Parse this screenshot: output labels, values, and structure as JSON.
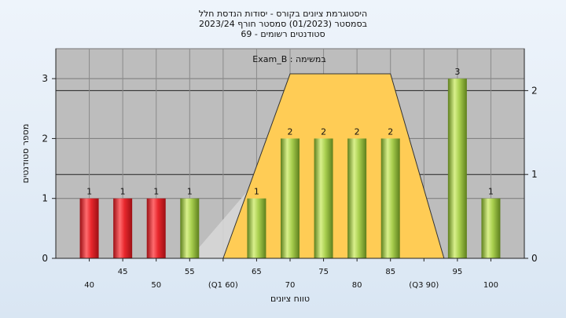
{
  "titles": {
    "line1": "היסטוגרמת ציונים בקורס - יסודות הנדסת חלל",
    "line2": "בסמסטר  (01/2023)  סמסטר חורף 2023/24",
    "line3": "סטודנטים רשומים - 69"
  },
  "colors": {
    "plot_bg": "#bdbdbd",
    "red": "#e8272c",
    "green": "#a9cf4f",
    "yellow": "#ffcc55",
    "gray": "#d6d6d6"
  },
  "chart_data": {
    "type": "bar",
    "ylabel": "מספר סטודנטים",
    "xlabel": "טווח ציונים",
    "annotation": "במשימה : Exam_B",
    "ylim": [
      0,
      3.5
    ],
    "yticks": [
      "0",
      "1",
      "2",
      "3"
    ],
    "right_yticks": [
      "0",
      "1",
      "2"
    ],
    "x_labels": [
      {
        "pos": 40,
        "label": "40",
        "row": 2
      },
      {
        "pos": 45,
        "label": "45",
        "row": 1
      },
      {
        "pos": 50,
        "label": "50",
        "row": 2
      },
      {
        "pos": 55,
        "label": "55",
        "row": 1
      },
      {
        "pos": 60,
        "label": "(Q1 60)",
        "row": 2
      },
      {
        "pos": 65,
        "label": "65",
        "row": 1
      },
      {
        "pos": 70,
        "label": "70",
        "row": 2
      },
      {
        "pos": 75,
        "label": "75",
        "row": 1
      },
      {
        "pos": 80,
        "label": "80",
        "row": 2
      },
      {
        "pos": 85,
        "label": "85",
        "row": 1
      },
      {
        "pos": 90,
        "label": "(Q3 90)",
        "row": 2
      },
      {
        "pos": 95,
        "label": "95",
        "row": 1
      },
      {
        "pos": 100,
        "label": "100",
        "row": 2
      }
    ],
    "bars": [
      {
        "x": 40,
        "value": 1,
        "color": "red"
      },
      {
        "x": 45,
        "value": 1,
        "color": "red"
      },
      {
        "x": 50,
        "value": 1,
        "color": "red"
      },
      {
        "x": 55,
        "value": 1,
        "color": "green"
      },
      {
        "x": 65,
        "value": 1,
        "color": "green"
      },
      {
        "x": 70,
        "value": 2,
        "color": "green"
      },
      {
        "x": 75,
        "value": 2,
        "color": "green"
      },
      {
        "x": 80,
        "value": 2,
        "color": "green"
      },
      {
        "x": 85,
        "value": 2,
        "color": "green"
      },
      {
        "x": 95,
        "value": 3,
        "color": "green"
      },
      {
        "x": 100,
        "value": 1,
        "color": "green"
      }
    ],
    "right_axis": {
      "ylim": [
        0,
        2.5
      ]
    },
    "quartile_band": {
      "points": [
        [
          60,
          0
        ],
        [
          70,
          2.2
        ],
        [
          85,
          2.2
        ],
        [
          93,
          0
        ]
      ]
    },
    "gray_band": {
      "points": [
        [
          55,
          0
        ],
        [
          65,
          1.3
        ],
        [
          65,
          0
        ]
      ]
    }
  }
}
